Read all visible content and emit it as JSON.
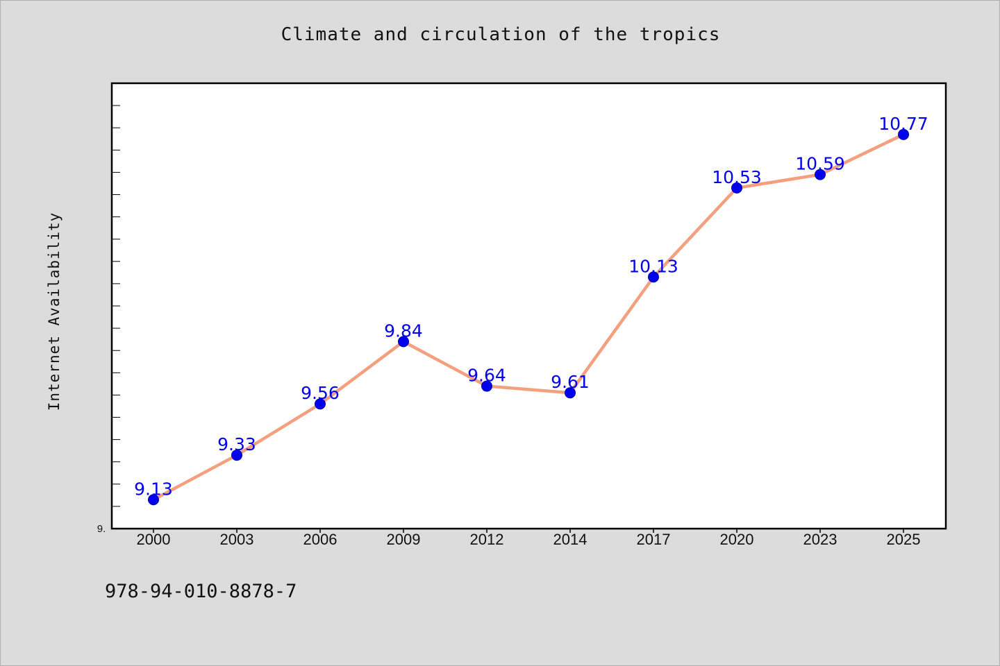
{
  "chart_data": {
    "type": "line",
    "title": "Climate and circulation of the tropics",
    "xlabel": "",
    "ylabel": "Internet Availability",
    "categories": [
      "2000",
      "2003",
      "2006",
      "2009",
      "2012",
      "2014",
      "2017",
      "2020",
      "2023",
      "2025"
    ],
    "series": [
      {
        "values": [
          9.13,
          9.33,
          9.56,
          9.84,
          9.64,
          9.61,
          10.13,
          10.53,
          10.59,
          10.77
        ]
      }
    ],
    "data_labels": [
      "9.13",
      "9.33",
      "9.56",
      "9.84",
      "9.64",
      "9.61",
      "10.13",
      "10.53",
      "10.59",
      "10.77"
    ],
    "ylim": [
      9.0,
      11.0
    ],
    "y_tick_label": "9.",
    "grid": false,
    "legend": "none",
    "colors": {
      "line": "#f4a07e",
      "marker": "#0000ee",
      "label": "#0000ee",
      "plot_bg": "#ffffff",
      "page_bg": "#dcdcdc"
    }
  },
  "footer": {
    "isbn": "978-94-010-8878-7"
  }
}
